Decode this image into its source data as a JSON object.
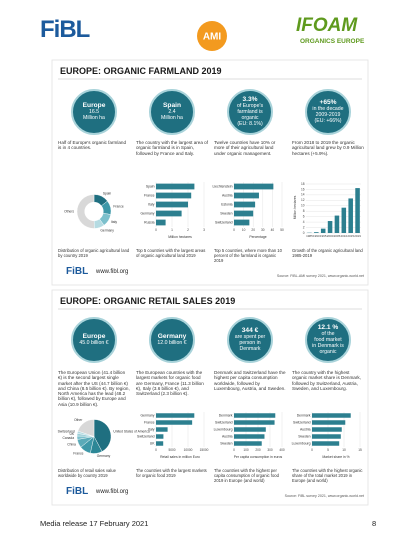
{
  "header": {
    "logos": [
      "FiBL",
      "AMI",
      "IFOAM",
      "ORGANICS EUROPE"
    ]
  },
  "sections": [
    {
      "title": "EUROPE: ORGANIC FARMLAND 2019",
      "circles": [
        {
          "lines": [
            "Europe",
            "16.5",
            "Million ha"
          ]
        },
        {
          "lines": [
            "Spain",
            "2.4",
            "Million ha"
          ]
        },
        {
          "lines": [
            "3.3%",
            "of Europe's",
            "farmland is",
            "organic",
            "(EU: 8.1%)"
          ]
        },
        {
          "lines": [
            "+65%",
            "in the decade",
            "2009-2019",
            "(EU: +66%)"
          ]
        }
      ],
      "descriptions": [
        "Half of Europe's organic farmland is in 4 countries.",
        "The country with the largest area of organic farmland is in Spain, followed by France and Italy.",
        "Twelve countries have 10% or more of their agricultural land under organic management.",
        "From 2018 to 2019 the organic agricultural land grew by 0.9 Million hectares (+5.9%)."
      ],
      "charts": [
        {
          "type": "donut",
          "labels": [
            "Spain",
            "France",
            "Italy",
            "Germany",
            "Others"
          ],
          "values": [
            2.4,
            2.2,
            2.0,
            1.6,
            8.3
          ],
          "colors": [
            "#1f6f80",
            "#3e98a8",
            "#7cc0cc",
            "#b5dbe2",
            "#d8d8d8"
          ]
        },
        {
          "type": "hbar",
          "labels": [
            "Spain",
            "France",
            "Italy",
            "Germany",
            "Russia"
          ],
          "values": [
            2.4,
            2.2,
            2.0,
            1.6,
            0.6
          ],
          "xlim": [
            0,
            3
          ],
          "xticks": [
            0,
            1,
            2,
            3
          ],
          "axis_label": "Million hectares",
          "color": "#2c7f8f"
        },
        {
          "type": "hbar",
          "labels": [
            "Liechtenstein",
            "Austria",
            "Estonia",
            "Sweden",
            "Switzerland"
          ],
          "values": [
            41,
            26,
            22,
            20,
            16
          ],
          "xlim": [
            0,
            50
          ],
          "xticks": [
            0,
            10,
            20,
            30,
            40,
            50
          ],
          "axis_label": "Percentage",
          "color": "#2c7f8f"
        },
        {
          "type": "vbar",
          "categories": [
            "1985",
            "1990",
            "1995",
            "2000",
            "2005",
            "2010",
            "2015",
            "2019"
          ],
          "values": [
            0.1,
            0.3,
            1.6,
            4.4,
            6.4,
            9.3,
            12.7,
            16.5
          ],
          "ylim": [
            0,
            18
          ],
          "yticks": [
            0,
            2,
            4,
            6,
            8,
            10,
            12,
            14,
            16,
            18
          ],
          "axis_label": "Million hectares",
          "color": "#2c7f8f"
        }
      ],
      "captions": [
        "Distribution of organic agricultural land by country 2019",
        "Top 5 countries with the largest areas of organic agricultural land 2019",
        "Top 5 countries, where more than 10 percent of the farmland is organic 2019",
        "Growth of the organic agricultural land 1985-2019"
      ],
      "footer": {
        "logo": "FiBL",
        "url": "www.fibl.org",
        "source": "Source: FiBL-AMI survey 2021, www.organic-world.net"
      }
    },
    {
      "title": "EUROPE: ORGANIC RETAIL SALES 2019",
      "circles": [
        {
          "lines": [
            "Europe",
            "45.0 billion €"
          ]
        },
        {
          "lines": [
            "Germany",
            "12.0 billion €"
          ]
        },
        {
          "lines": [
            "344 €",
            "are spent per",
            "person in",
            "Denmark"
          ]
        },
        {
          "lines": [
            "12.1 %",
            "of the",
            "food market",
            "in Denmark is",
            "organic"
          ]
        }
      ],
      "descriptions": [
        "The European Union (41.4 billion €) is the second largest single market after the US (44.7 billion €) and China (8.5 billion €). By region, North America has the lead (48.2 billion €), followed by Europe and Asia (10.9 billion €).",
        "The European countries with the largest markets for organic food are Germany, France (11.3 billion €), Italy (3.6 billion €), and Switzerland (2.3 billion €).",
        "Denmark and Switzerland have the highest per capita consumption worldwide, followed by Luxembourg, Austria, and Sweden.",
        "The country with the highest organic market share is Denmark, followed by Switzerland, Austria, Sweden, and Luxembourg."
      ],
      "charts": [
        {
          "type": "pie",
          "labels": [
            "United States of America",
            "Germany",
            "France",
            "China",
            "Canada",
            "UK",
            "Switzerland",
            "Other"
          ],
          "values": [
            44.7,
            12.0,
            11.3,
            8.5,
            3.5,
            2.7,
            2.3,
            21.0
          ],
          "colors": [
            "#1f6f80",
            "#2c8796",
            "#3e98a8",
            "#5aaab8",
            "#7cc0cc",
            "#9ccfd8",
            "#b5dbe2",
            "#d8d8d8"
          ]
        },
        {
          "type": "hbar",
          "labels": [
            "Germany",
            "France",
            "Italy",
            "Switzerland",
            "UK"
          ],
          "values": [
            11970,
            11295,
            3625,
            2316,
            2250
          ],
          "xlim": [
            0,
            15000
          ],
          "xticks": [
            0,
            5000,
            10000,
            15000
          ],
          "axis_label": "Retail sales in million Euro",
          "color": "#2c7f8f"
        },
        {
          "type": "hbar",
          "labels": [
            "Denmark",
            "Switzerland",
            "Luxembourg",
            "Austria",
            "Sweden"
          ],
          "values": [
            344,
            338,
            265,
            254,
            231
          ],
          "xlim": [
            0,
            400
          ],
          "xticks": [
            0,
            100,
            200,
            300,
            400
          ],
          "axis_label": "Per capita consumption in euros",
          "color": "#2c7f8f"
        },
        {
          "type": "hbar",
          "labels": [
            "Denmark",
            "Switzerland",
            "Austria",
            "Sweden",
            "Luxembourg"
          ],
          "values": [
            12.1,
            10.4,
            9.3,
            9.0,
            8.5
          ],
          "xlim": [
            0,
            15
          ],
          "xticks": [
            0,
            5,
            10,
            15
          ],
          "axis_label": "Market share in %",
          "color": "#2c7f8f"
        }
      ],
      "captions": [
        "Distribution of retail sales value worldwide by country 2019",
        "The countries with the largest markets for organic food 2019",
        "The countries with the highest per capita consumption of organic food 2019 in Europe (and world)",
        "The countries with the highest organic share of the total market 2019 in Europe (and world)"
      ],
      "footer": {
        "logo": "FiBL",
        "url": "www.fibl.org",
        "source": "Source: FiBL survey 2021, www.organic-world.net"
      }
    }
  ],
  "footer": {
    "text": "Media release 17 February 2021",
    "page": "8"
  }
}
